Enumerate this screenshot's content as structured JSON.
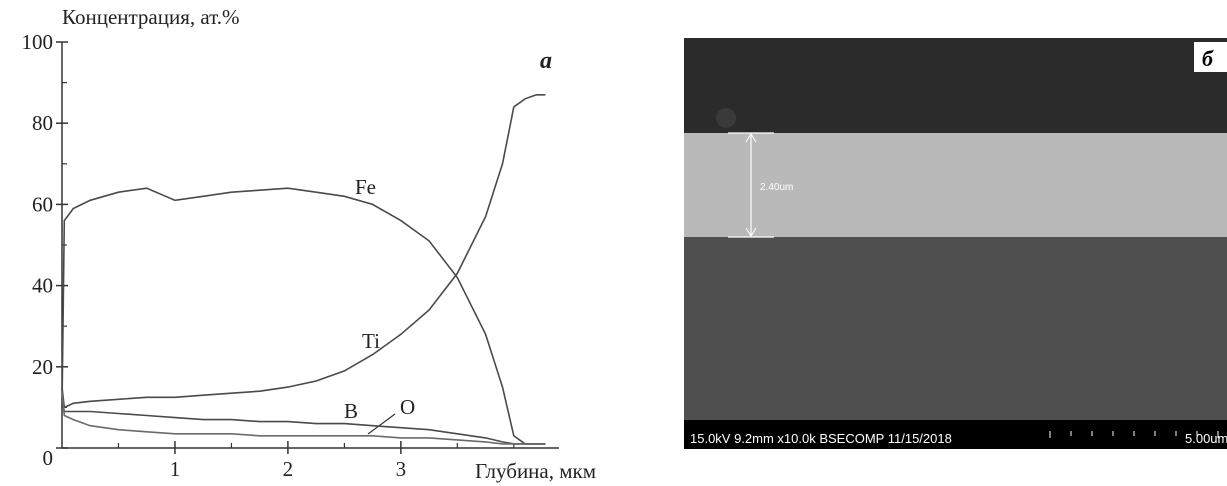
{
  "chart_data": {
    "type": "line",
    "y_label": "Концентрация, ат.%",
    "x_label": "Глубина, мкм",
    "panel_label": "а",
    "x": [
      0,
      0.02,
      0.1,
      0.25,
      0.5,
      0.75,
      1.0,
      1.25,
      1.5,
      1.75,
      2.0,
      2.25,
      2.5,
      2.75,
      3.0,
      3.25,
      3.5,
      3.75,
      3.9,
      4.0,
      4.1,
      4.2,
      4.28
    ],
    "series": [
      {
        "name": "Fe",
        "color": "#4a4a4a",
        "values": [
          10,
          56,
          59,
          61,
          63,
          64,
          61,
          62,
          63,
          63.5,
          64,
          63,
          62,
          60,
          56,
          51,
          42,
          28,
          15,
          3,
          1,
          1,
          1
        ]
      },
      {
        "name": "Ti",
        "color": "#4a4a4a",
        "values": [
          15,
          10,
          11,
          11.5,
          12,
          12.5,
          12.5,
          13,
          13.5,
          14,
          15,
          16.5,
          19,
          23,
          28,
          34,
          43,
          57,
          70,
          84,
          86,
          87,
          87
        ]
      },
      {
        "name": "B",
        "color": "#4a4a4a",
        "values": [
          12,
          9,
          9,
          9,
          8.5,
          8,
          7.5,
          7,
          7,
          6.5,
          6.5,
          6,
          6,
          5.5,
          5,
          4.5,
          3.5,
          2.5,
          1.5,
          1,
          1,
          1,
          1
        ]
      },
      {
        "name": "O",
        "color": "#6a6a6a",
        "values": [
          14,
          8,
          7,
          5.5,
          4.5,
          4,
          3.5,
          3.5,
          3.5,
          3,
          3,
          3,
          3,
          3,
          2.5,
          2.5,
          2,
          1.5,
          1,
          1,
          1,
          1,
          1
        ]
      }
    ],
    "xlim": [
      0,
      4.4
    ],
    "ylim": [
      0,
      100
    ],
    "xticks": [
      1,
      2,
      3
    ],
    "yticks": [
      0,
      20,
      40,
      60,
      80,
      100
    ],
    "xticks_minor": [
      0.5,
      1.5,
      2.5,
      3.5,
      4
    ],
    "yticks_minor": [
      10,
      30,
      50,
      70,
      90
    ]
  },
  "image": {
    "panel_label": "б",
    "measurement": "2.40um",
    "info": "15.0kV 9.2mm x10.0k BSECOMP  11/15/2018",
    "scale_bar": "5.00um"
  }
}
